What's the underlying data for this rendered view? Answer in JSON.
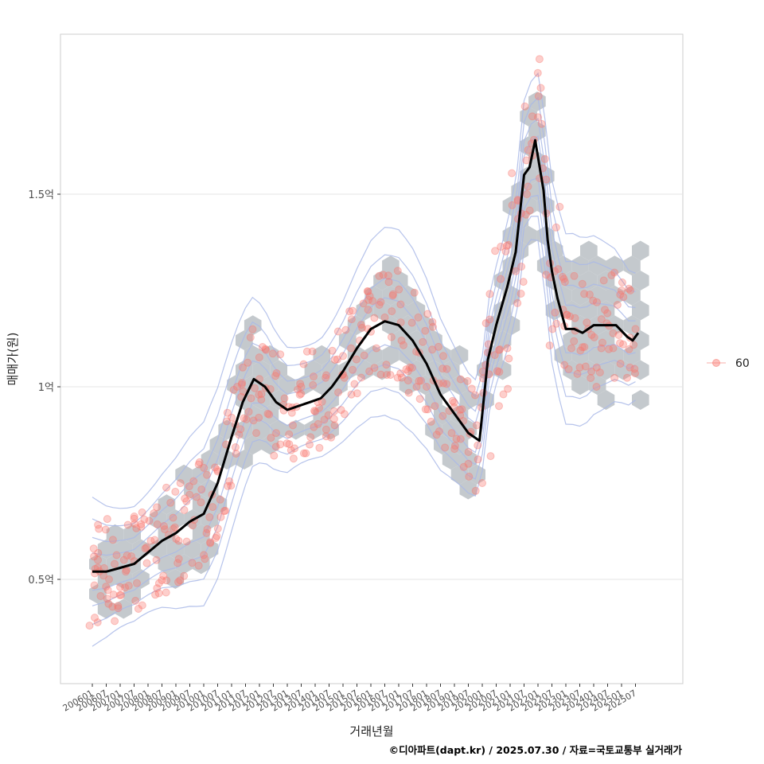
{
  "chart_data": {
    "type": "scatter",
    "xlabel": "거래년월",
    "ylabel": "매매가(원)",
    "caption": "©디아파트(dapt.kr) / 2025.07.30 / 자료=국토교통부 실거래가",
    "x_ticks": [
      "200601",
      "200607",
      "200701",
      "200707",
      "200801",
      "200807",
      "200901",
      "200907",
      "201001",
      "201007",
      "201101",
      "201107",
      "201201",
      "201207",
      "201301",
      "201307",
      "201401",
      "201407",
      "201501",
      "201507",
      "201601",
      "201607",
      "201701",
      "201707",
      "201801",
      "201807",
      "201901",
      "201907",
      "202001",
      "202007",
      "202101",
      "202107",
      "202201",
      "202207",
      "202301",
      "202307",
      "202401",
      "202407",
      "202501",
      "202507"
    ],
    "y_ticks": [
      {
        "label": "0.5억",
        "value": 0.5
      },
      {
        "label": "1억",
        "value": 1.0
      },
      {
        "label": "1.5억",
        "value": 1.5
      }
    ],
    "ylim": [
      0.25,
      1.95
    ],
    "legend": {
      "label": "60",
      "position": "right"
    },
    "trend": {
      "name": "moving-average",
      "x": [
        2006.0,
        2006.5,
        2007.0,
        2007.5,
        2008.0,
        2008.5,
        2009.0,
        2009.5,
        2010.0,
        2010.5,
        2011.0,
        2011.4,
        2011.8,
        2012.2,
        2012.6,
        2013.0,
        2013.4,
        2013.8,
        2014.2,
        2014.6,
        2015.0,
        2015.5,
        2016.0,
        2016.5,
        2017.0,
        2017.5,
        2018.0,
        2018.5,
        2019.0,
        2019.5,
        2019.9,
        2020.2,
        2020.5,
        2020.9,
        2021.2,
        2021.5,
        2021.7,
        2021.9,
        2022.2,
        2022.35,
        2022.5,
        2022.7,
        2023.0,
        2023.3,
        2023.6,
        2024.0,
        2024.4,
        2024.8,
        2025.2,
        2025.4,
        2025.6
      ],
      "y": [
        0.52,
        0.52,
        0.53,
        0.54,
        0.57,
        0.6,
        0.62,
        0.65,
        0.67,
        0.75,
        0.87,
        0.96,
        1.02,
        1.0,
        0.96,
        0.94,
        0.95,
        0.96,
        0.97,
        1.0,
        1.04,
        1.1,
        1.15,
        1.17,
        1.16,
        1.12,
        1.06,
        0.98,
        0.93,
        0.88,
        0.86,
        1.07,
        1.16,
        1.26,
        1.35,
        1.55,
        1.57,
        1.64,
        1.51,
        1.38,
        1.3,
        1.23,
        1.15,
        1.15,
        1.14,
        1.16,
        1.16,
        1.16,
        1.13,
        1.12,
        1.14
      ]
    },
    "points": [
      [
        2006.05,
        0.58
      ],
      [
        2006.2,
        0.55
      ],
      [
        2006.4,
        0.51
      ],
      [
        2006.6,
        0.5
      ],
      [
        2006.8,
        0.54
      ],
      [
        2007.0,
        0.48
      ],
      [
        2007.2,
        0.52
      ],
      [
        2007.4,
        0.56
      ],
      [
        2007.6,
        0.49
      ],
      [
        2007.9,
        0.58
      ],
      [
        2008.1,
        0.6
      ],
      [
        2008.3,
        0.55
      ],
      [
        2008.6,
        0.63
      ],
      [
        2008.9,
        0.66
      ],
      [
        2009.1,
        0.6
      ],
      [
        2009.3,
        0.68
      ],
      [
        2009.6,
        0.64
      ],
      [
        2009.9,
        0.7
      ],
      [
        2010.1,
        0.62
      ],
      [
        2010.3,
        0.72
      ],
      [
        2010.5,
        0.78
      ],
      [
        2010.8,
        0.85
      ],
      [
        2011.0,
        0.92
      ],
      [
        2011.2,
        1.0
      ],
      [
        2011.4,
        1.05
      ],
      [
        2011.7,
        0.97
      ],
      [
        2012.0,
        1.02
      ],
      [
        2012.3,
        0.93
      ],
      [
        2012.6,
        0.88
      ],
      [
        2012.9,
        0.97
      ],
      [
        2013.2,
        0.9
      ],
      [
        2013.5,
        1.0
      ],
      [
        2013.8,
        0.85
      ],
      [
        2014.1,
        0.96
      ],
      [
        2014.4,
        1.03
      ],
      [
        2014.7,
        0.9
      ],
      [
        2015.0,
        1.08
      ],
      [
        2015.3,
        0.98
      ],
      [
        2015.6,
        1.12
      ],
      [
        2015.9,
        1.2
      ],
      [
        2016.2,
        1.1
      ],
      [
        2016.5,
        1.18
      ],
      [
        2016.8,
        1.24
      ],
      [
        2017.1,
        1.12
      ],
      [
        2017.4,
        1.05
      ],
      [
        2017.7,
        1.18
      ],
      [
        2018.0,
        1.0
      ],
      [
        2018.3,
        0.95
      ],
      [
        2018.6,
        1.08
      ],
      [
        2018.9,
        0.88
      ],
      [
        2019.2,
        0.94
      ],
      [
        2019.5,
        0.8
      ],
      [
        2019.8,
        0.9
      ],
      [
        2020.0,
        0.75
      ],
      [
        2020.3,
        0.82
      ],
      [
        2020.6,
        0.95
      ],
      [
        2020.9,
        1.1
      ],
      [
        2021.2,
        1.3
      ],
      [
        2021.4,
        1.45
      ],
      [
        2021.6,
        1.5
      ],
      [
        2021.8,
        1.6
      ],
      [
        2022.0,
        1.7
      ],
      [
        2022.3,
        1.45
      ],
      [
        2022.6,
        1.3
      ],
      [
        2022.9,
        1.2
      ],
      [
        2023.2,
        1.1
      ],
      [
        2023.5,
        1.05
      ],
      [
        2023.8,
        1.15
      ],
      [
        2024.1,
        1.0
      ],
      [
        2024.4,
        1.2
      ],
      [
        2024.7,
        1.1
      ],
      [
        2025.0,
        1.25
      ],
      [
        2025.3,
        1.05
      ],
      [
        2025.5,
        1.15
      ]
    ]
  }
}
